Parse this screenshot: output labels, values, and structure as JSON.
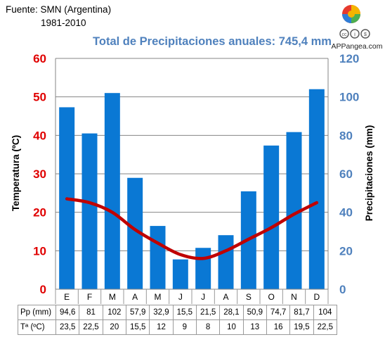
{
  "source": {
    "line1": "Fuente: SMN (Argentina)",
    "line2": "1981-2010"
  },
  "title": "Total de Precipitaciones anuales: 745,4 mm",
  "logo": {
    "text": "APPangea.com",
    "colors": [
      "#e63a2e",
      "#f4b400",
      "#4caf50",
      "#2e7dd7"
    ]
  },
  "chart_data": {
    "type": "bar+line",
    "categories": [
      "E",
      "F",
      "M",
      "A",
      "M",
      "J",
      "J",
      "A",
      "S",
      "O",
      "N",
      "D"
    ],
    "series": [
      {
        "name": "Pp (mm)",
        "type": "bar",
        "axis": "right",
        "color": "#0a78d4",
        "values": [
          94.6,
          81,
          102,
          57.9,
          32.9,
          15.5,
          21.5,
          28.1,
          50.9,
          74.7,
          81.7,
          104
        ]
      },
      {
        "name": "Tª (ºC)",
        "type": "line",
        "axis": "left",
        "color": "#c00000",
        "values": [
          23.5,
          22.5,
          20,
          15.5,
          12,
          9,
          8,
          10,
          13,
          16,
          19.5,
          22.5
        ]
      }
    ],
    "y_left": {
      "label": "Temperatura (ºC)",
      "min": 0,
      "max": 60,
      "ticks": [
        "0",
        "10",
        "20",
        "30",
        "40",
        "50",
        "60"
      ]
    },
    "y_right": {
      "label": "Precipitaciones (mm)",
      "min": 0,
      "max": 120,
      "ticks": [
        "0",
        "20",
        "40",
        "60",
        "80",
        "100",
        "120"
      ]
    },
    "grid": "horizontal"
  },
  "table": {
    "rows": [
      {
        "header": "Pp (mm)",
        "cells": [
          "94,6",
          "81",
          "102",
          "57,9",
          "32,9",
          "15,5",
          "21,5",
          "28,1",
          "50,9",
          "74,7",
          "81,7",
          "104"
        ]
      },
      {
        "header": "Tª (ºC)",
        "cells": [
          "23,5",
          "22,5",
          "20",
          "15,5",
          "12",
          "9",
          "8",
          "10",
          "13",
          "16",
          "19,5",
          "22,5"
        ]
      }
    ]
  }
}
